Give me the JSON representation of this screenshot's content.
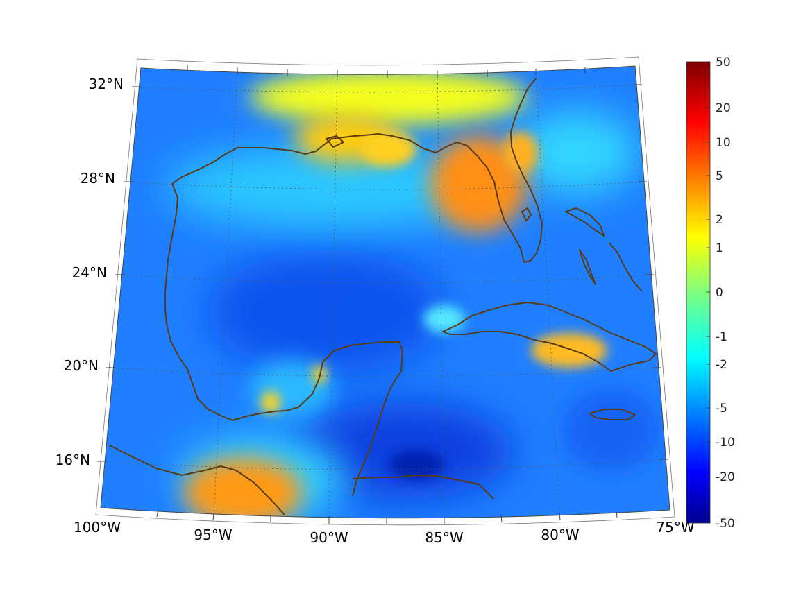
{
  "map": {
    "region": "Gulf of Mexico and Caribbean",
    "lon_range": [
      -100,
      -75
    ],
    "lat_range": [
      14,
      33
    ],
    "graticule": true,
    "projection": "conic"
  },
  "axes": {
    "lat_labels": [
      "32°N",
      "28°N",
      "24°N",
      "20°N",
      "16°N"
    ],
    "lon_labels": [
      "100°W",
      "95°W",
      "90°W",
      "85°W",
      "80°W",
      "75°W"
    ]
  },
  "colorbar": {
    "colormap": "jet",
    "placement": "right",
    "tick_labels": [
      "50",
      "20",
      "10",
      "5",
      "2",
      "1",
      "0",
      "-1",
      "-2",
      "-5",
      "-10",
      "-20",
      "-50"
    ]
  },
  "field_highlights": [
    {
      "name": "Florida peninsula",
      "level": "5"
    },
    {
      "name": "Southern Mexico",
      "level": "5"
    },
    {
      "name": "Northern Gulf coast",
      "level": "1"
    },
    {
      "name": "Central Cuba",
      "level": "2"
    },
    {
      "name": "Central Gulf",
      "level": "-10"
    },
    {
      "name": "Western Caribbean",
      "level": "-20"
    }
  ],
  "colors": {
    "coastline": "#5a3a14",
    "background_field": "#1f7fff",
    "frame": "#444444"
  }
}
